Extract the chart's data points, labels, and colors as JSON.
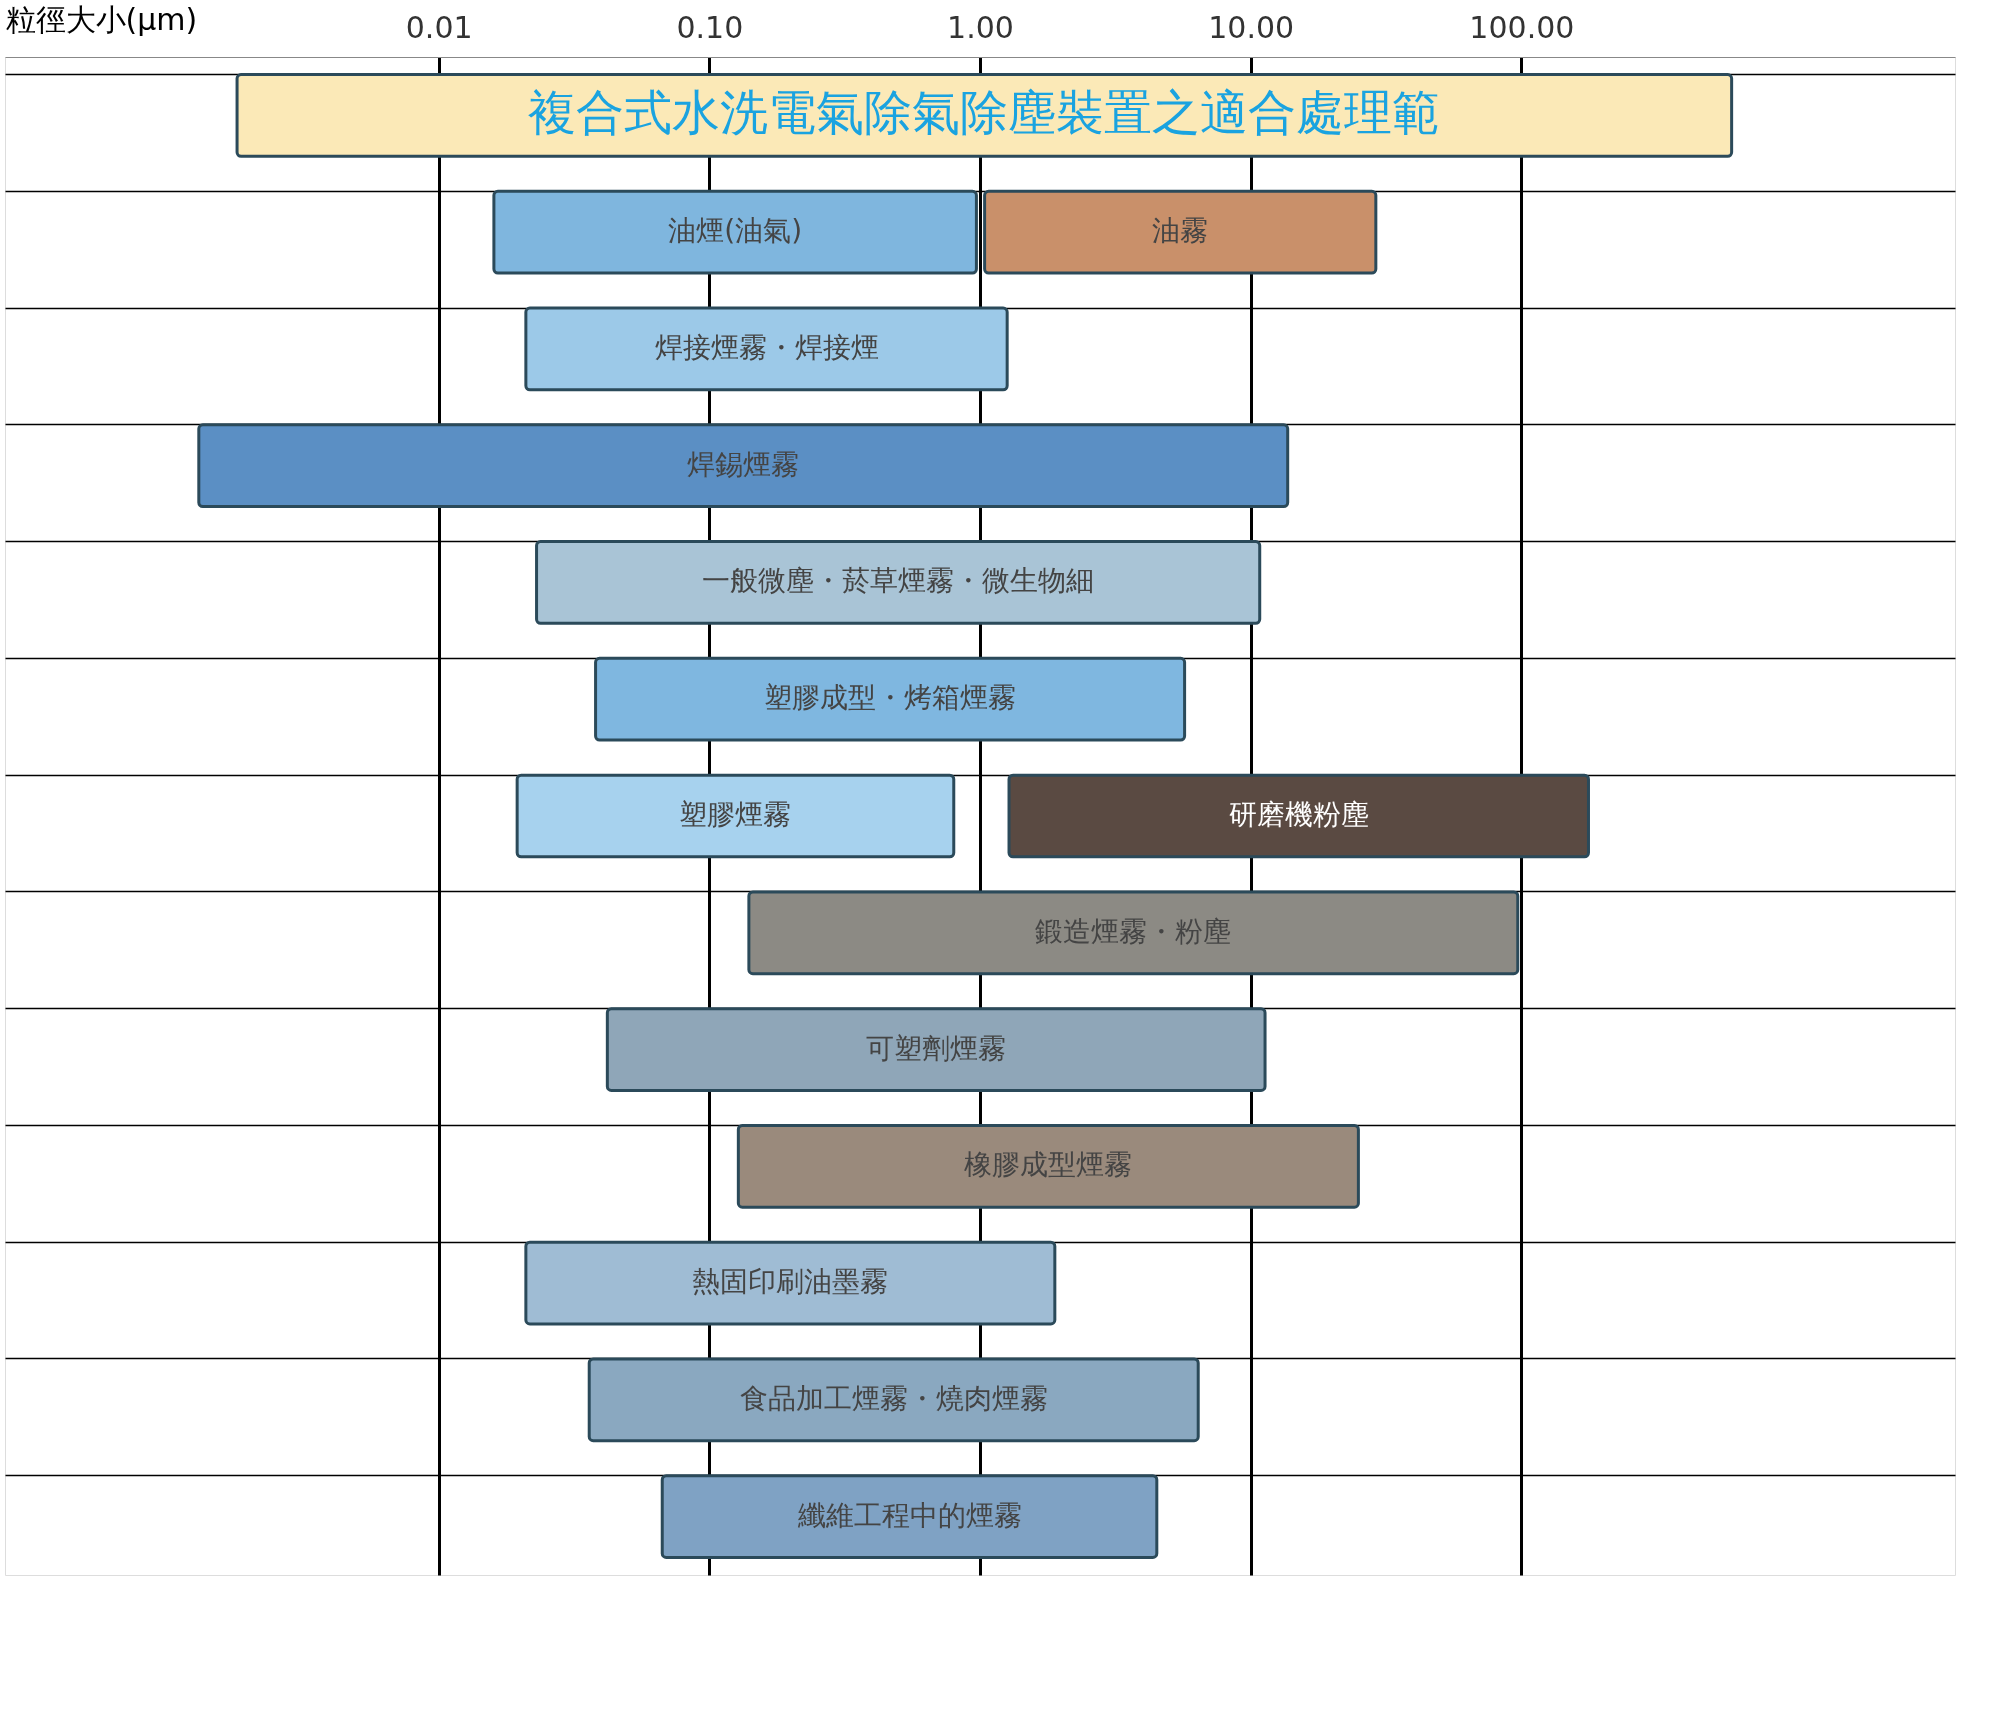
{
  "chart_data": {
    "type": "bar",
    "orientation": "horizontal",
    "log": "x",
    "xlabel": "粒徑大小(μm)",
    "categories": [
      null,
      null,
      null,
      null,
      null,
      null,
      null,
      null,
      null,
      null,
      null,
      null,
      null
    ],
    "xlim": [
      0.00025,
      4000
    ],
    "xticks": [
      0.01,
      {
        "value": 0.1,
        "label": "0.10"
      },
      {
        "value": 1,
        "label": "1.00"
      },
      {
        "value": 10,
        "label": "10.00"
      },
      {
        "value": 100,
        "label": "100.00"
      }
    ],
    "grid": true,
    "tick_labels": "x",
    "series": [
      {
        "base": [
          0.0018,
          0.016,
          0.021,
          0.0013,
          0.023,
          0.038,
          0.0195,
          0.14,
          0.042,
          0.128,
          0.021,
          0.036,
          0.067
        ],
        "values": [
          598.2,
          0.954,
          1.239,
          13.7,
          10.777,
          5.662,
          0.7805,
          96.86,
          11.258,
          24.872,
          1.869,
          6.364,
          4.433
        ],
        "colors": [
          "#fbe9b7",
          "#7fb6de",
          "#9cc9e8",
          "#5b8fc4",
          "#a9c4d6",
          "#7fb7e0",
          "#a7d2ee",
          "#8c8a84",
          "#8fa6b8",
          "#9a8a7c",
          "#9fbcd4",
          "#8aa8c0",
          "#7fa2c4"
        ],
        "value_labels": [
          "複合式水洗電氣除氣除塵裝置之適合處理範",
          "油煙(油氣)",
          "焊接煙霧・焊接煙",
          "焊錫煙霧",
          "一般微塵・菸草煙霧・微生物細",
          "塑膠成型・烤箱煙霧",
          "塑膠煙霧",
          "鍛造煙霧・粉塵",
          "可塑劑煙霧",
          "橡膠成型煙霧",
          "熱固印刷油墨霧",
          "食品加工煙霧・燒肉煙霧",
          "纖維工程中的煙霧"
        ]
      },
      {
        "base": [
          null,
          1.04,
          null,
          null,
          null,
          null,
          1.28,
          null,
          null,
          null,
          null,
          null,
          null
        ],
        "values": [
          null,
          27.96,
          null,
          null,
          null,
          null,
          175.72,
          null,
          null,
          null,
          null,
          null,
          null
        ],
        "colors": [
          null,
          "#c9906a",
          null,
          null,
          null,
          null,
          "#5a4a42",
          null,
          null,
          null,
          null,
          null,
          null
        ],
        "value_labels": [
          null,
          "油霧",
          null,
          null,
          null,
          null,
          "研磨機粉塵",
          null,
          null,
          null,
          null,
          null,
          null
        ]
      }
    ]
  }
}
